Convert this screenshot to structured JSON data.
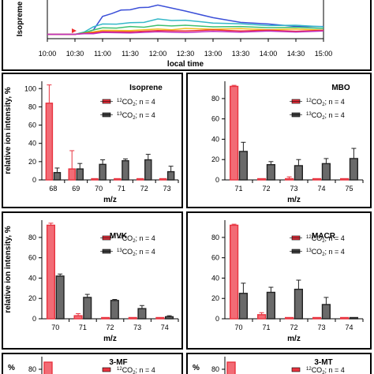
{
  "chart_data": [
    {
      "type": "line",
      "xlabel": "local time",
      "ylabel": "Isopreme",
      "x_ticks": [
        "10:00",
        "10:30",
        "11:00",
        "11:30",
        "12:00",
        "12:30",
        "13:00",
        "13:30",
        "14:00",
        "14:30",
        "15:00"
      ],
      "grid": false,
      "series": [
        {
          "color": "#3b4fd8",
          "x": [
            "10:00",
            "10:30",
            "10:40",
            "10:50",
            "11:00",
            "11:10",
            "11:20",
            "11:30",
            "11:40",
            "11:50",
            "12:00",
            "12:30",
            "13:00",
            "13:30",
            "14:00",
            "14:30",
            "15:00"
          ],
          "values": [
            0.22,
            0.22,
            0.3,
            0.6,
            1.6,
            1.9,
            2.1,
            2.2,
            2.3,
            2.4,
            2.5,
            2.1,
            1.5,
            1.2,
            1.0,
            0.88,
            0.8
          ]
        },
        {
          "color": "#34b8c8",
          "x": [
            "10:00",
            "10:30",
            "10:40",
            "10:50",
            "11:00",
            "11:15",
            "11:30",
            "11:45",
            "12:00",
            "12:15",
            "12:30",
            "13:00",
            "13:30",
            "14:00",
            "14:30",
            "15:00"
          ],
          "values": [
            0.22,
            0.22,
            0.4,
            0.85,
            1.0,
            1.06,
            1.1,
            1.2,
            1.4,
            1.35,
            1.3,
            1.15,
            1.02,
            0.95,
            0.9,
            0.85
          ]
        },
        {
          "color": "#3ec070",
          "x": [
            "10:00",
            "10:30",
            "10:40",
            "10:50",
            "11:00",
            "11:15",
            "11:30",
            "11:45",
            "12:00",
            "12:15",
            "12:30",
            "13:00",
            "13:30",
            "14:00",
            "14:30",
            "15:00"
          ],
          "values": [
            0.22,
            0.22,
            0.35,
            0.6,
            0.7,
            0.75,
            0.8,
            0.82,
            0.9,
            0.92,
            0.9,
            0.85,
            0.8,
            0.78,
            0.74,
            0.72
          ]
        },
        {
          "color": "#f0c020",
          "x": [
            "10:00",
            "10:30",
            "10:40",
            "10:50",
            "11:00",
            "11:30",
            "12:00",
            "12:15",
            "12:30",
            "13:00",
            "13:30",
            "14:00",
            "14:30",
            "15:00"
          ],
          "values": [
            0.22,
            0.22,
            0.3,
            0.45,
            0.5,
            0.55,
            0.6,
            0.62,
            0.65,
            0.66,
            0.64,
            0.62,
            0.6,
            0.58
          ]
        },
        {
          "color": "#ef3030",
          "x": [
            "10:00",
            "10:30",
            "10:40",
            "10:50",
            "11:00",
            "11:30",
            "12:00",
            "12:30",
            "13:00",
            "13:30",
            "14:00",
            "14:30",
            "15:00"
          ],
          "values": [
            0.22,
            0.22,
            0.3,
            0.38,
            0.4,
            0.45,
            0.48,
            0.52,
            0.53,
            0.52,
            0.51,
            0.5,
            0.5
          ]
        },
        {
          "color": "#c030c0",
          "x": [
            "10:00",
            "10:30",
            "10:40",
            "10:50",
            "11:00",
            "11:30",
            "12:00",
            "12:30",
            "13:00",
            "13:30",
            "14:00",
            "14:30",
            "15:00"
          ],
          "values": [
            0.22,
            0.22,
            0.26,
            0.3,
            0.33,
            0.36,
            0.38,
            0.4,
            0.42,
            0.43,
            0.44,
            0.44,
            0.45
          ]
        }
      ]
    },
    {
      "type": "bar",
      "title": "Isoprene",
      "ylabel": "relative ion intensity, %",
      "xlabel": "m/z",
      "categories": [
        "68",
        "69",
        "70",
        "71",
        "72",
        "73"
      ],
      "y_ticks": [
        0,
        20,
        40,
        60,
        80,
        100
      ],
      "ylim": [
        0,
        108
      ],
      "series": [
        {
          "name": "12CO2; n = 4",
          "color": "#e8333f",
          "values": [
            84,
            12,
            1,
            1,
            1,
            1
          ],
          "errors": [
            20,
            20,
            0,
            0,
            0,
            0
          ]
        },
        {
          "name": "13CO2; n = 4",
          "color": "#444444",
          "values": [
            8,
            12,
            17,
            21,
            22,
            9
          ],
          "errors": [
            5,
            6,
            5,
            2,
            6,
            6
          ]
        }
      ]
    },
    {
      "type": "bar",
      "title": "MBO",
      "xlabel": "m/z",
      "categories": [
        "71",
        "72",
        "73",
        "74",
        "75"
      ],
      "y_ticks": [
        0,
        20,
        40,
        60,
        80
      ],
      "ylim": [
        0,
        97
      ],
      "series": [
        {
          "name": "12CO2; n = 4",
          "color": "#e8333f",
          "values": [
            92,
            1,
            1,
            1,
            1
          ],
          "errors": [
            1,
            0,
            2,
            0,
            0
          ]
        },
        {
          "name": "13CO2; n = 4",
          "color": "#444444",
          "values": [
            28,
            15,
            14,
            16,
            21
          ],
          "errors": [
            9,
            3,
            6,
            5,
            10
          ]
        }
      ]
    },
    {
      "type": "bar",
      "title": "MVK",
      "ylabel": "relative ion intensity, %",
      "xlabel": "m/z",
      "categories": [
        "70",
        "71",
        "72",
        "73",
        "74"
      ],
      "y_ticks": [
        0,
        20,
        40,
        60,
        80
      ],
      "ylim": [
        0,
        97
      ],
      "series": [
        {
          "name": "12CO2; n = 4",
          "color": "#e8333f",
          "values": [
            92,
            3,
            1,
            1,
            1
          ],
          "errors": [
            2,
            2,
            0,
            0,
            0
          ]
        },
        {
          "name": "13CO2; n = 4",
          "color": "#444444",
          "values": [
            42,
            21,
            18,
            10,
            2
          ],
          "errors": [
            2,
            3,
            1,
            3,
            1
          ]
        }
      ]
    },
    {
      "type": "bar",
      "title": "MACR",
      "xlabel": "m/z",
      "categories": [
        "70",
        "71",
        "72",
        "73",
        "74"
      ],
      "y_ticks": [
        0,
        20,
        40,
        60,
        80
      ],
      "ylim": [
        0,
        97
      ],
      "series": [
        {
          "name": "12CO2; n = 4",
          "color": "#e8333f",
          "values": [
            92,
            4,
            1,
            1,
            1
          ],
          "errors": [
            1,
            2,
            0,
            0,
            0
          ]
        },
        {
          "name": "13CO2; n = 4",
          "color": "#444444",
          "values": [
            25,
            26,
            29,
            14,
            1
          ],
          "errors": [
            10,
            5,
            9,
            7,
            0
          ]
        }
      ]
    },
    {
      "type": "bar",
      "title": "3-MF",
      "y_ticks": [
        80
      ],
      "series": [
        {
          "name": "12CO2; n = 4",
          "color": "#e8333f"
        },
        {
          "name": "13CO2; n = 4",
          "color": "#444444"
        }
      ]
    },
    {
      "type": "bar",
      "title": "3-MT",
      "y_ticks": [
        80
      ],
      "series": [
        {
          "name": "12CO2; n = 4",
          "color": "#e8333f"
        },
        {
          "name": "13CO2; n = 4",
          "color": "#444444"
        }
      ]
    }
  ]
}
